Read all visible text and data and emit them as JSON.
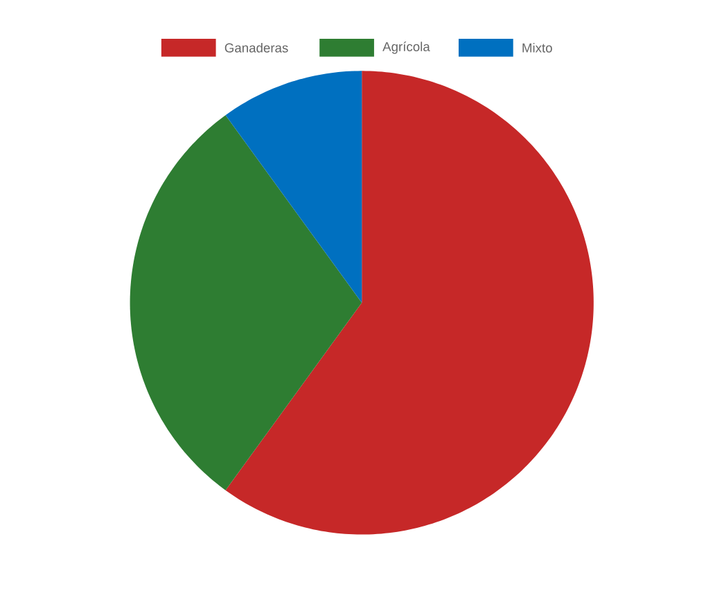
{
  "chart_data": {
    "type": "pie",
    "categories": [
      "Ganaderas",
      "Agrícola",
      "Mixto"
    ],
    "values": [
      60,
      30,
      10
    ],
    "colors": [
      "#c62828",
      "#2e7d32",
      "#0070c0"
    ],
    "legend": "top"
  }
}
